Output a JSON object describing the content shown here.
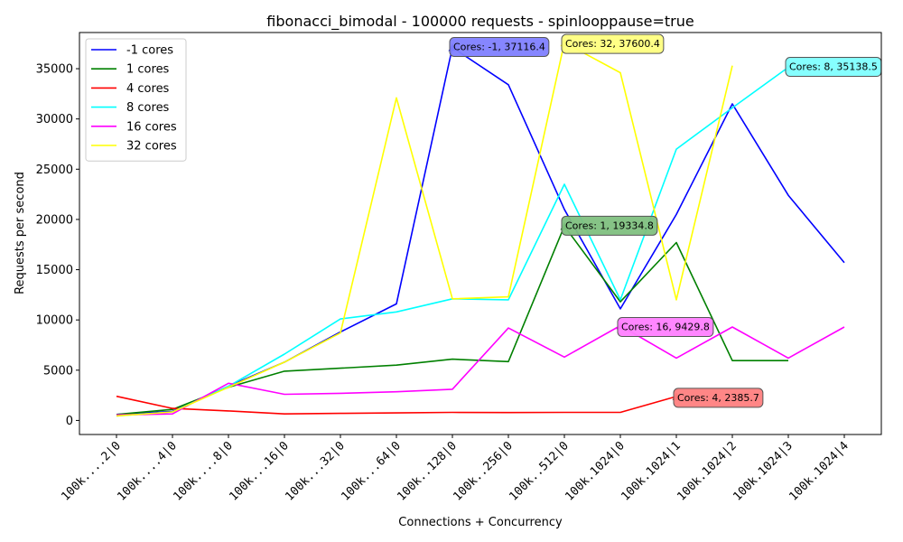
{
  "chart_data": {
    "type": "line",
    "title": "fibonacci_bimodal - 100000 requests - spinlooppause=true",
    "xlabel": "Connections + Concurrency",
    "ylabel": "Requests per second",
    "ylim": [
      -1400,
      38600
    ],
    "yticks": [
      0,
      5000,
      10000,
      15000,
      20000,
      25000,
      30000,
      35000
    ],
    "ytick_labels": [
      "0",
      "5000",
      "10000",
      "15000",
      "20000",
      "25000",
      "30000",
      "35000"
    ],
    "categories": [
      "100k....2|0",
      "100k....4|0",
      "100k....8|0",
      "100k...16|0",
      "100k...32|0",
      "100k...64|0",
      "100k..128|0",
      "100k..256|0",
      "100k..512|0",
      "100k.1024|0",
      "100k.1024|1",
      "100k.1024|2",
      "100k.1024|3",
      "100k.1024|4"
    ],
    "legend_position": "top-left",
    "series": [
      {
        "name": "-1 cores",
        "color": "#0000ff",
        "values": [
          600,
          900,
          3400,
          5800,
          8800,
          11600,
          37116.4,
          33400,
          21000,
          11100,
          20500,
          31500,
          22400,
          15700
        ]
      },
      {
        "name": "1 cores",
        "color": "#008000",
        "values": [
          600,
          1100,
          3300,
          4900,
          5200,
          5500,
          6100,
          5850,
          19334.8,
          11800,
          17700,
          5950,
          5950,
          null
        ]
      },
      {
        "name": "4 cores",
        "color": "#ff0000",
        "values": [
          2400,
          1200,
          950,
          650,
          700,
          750,
          800,
          780,
          800,
          800,
          2385.7,
          null,
          null,
          null
        ]
      },
      {
        "name": "8 cores",
        "color": "#00ffff",
        "values": [
          450,
          850,
          3400,
          6600,
          10100,
          10800,
          12100,
          12000,
          23500,
          12000,
          27000,
          31100,
          35138.5,
          null
        ]
      },
      {
        "name": "16 cores",
        "color": "#ff00ff",
        "values": [
          550,
          650,
          3700,
          2600,
          2700,
          2850,
          3100,
          9200,
          6300,
          9429.8,
          6200,
          9300,
          6200,
          9300
        ]
      },
      {
        "name": "32 cores",
        "color": "#ffff00",
        "values": [
          450,
          850,
          3300,
          5800,
          8700,
          32100,
          12100,
          12300,
          37600.4,
          34600,
          12000,
          35300,
          null,
          null
        ]
      }
    ],
    "annotations": [
      {
        "text": "Cores: -1, 37116.4",
        "series": 0,
        "index": 6,
        "face": "#8080ff",
        "dx": 0,
        "dy": -10
      },
      {
        "text": "Cores: 32, 37600.4",
        "series": 5,
        "index": 8,
        "face": "#ffff80",
        "dx": 0,
        "dy": -8
      },
      {
        "text": "Cores: 8, 35138.5",
        "series": 3,
        "index": 12,
        "face": "#80ffff",
        "dx": 0,
        "dy": -10
      },
      {
        "text": "Cores: 1, 19334.8",
        "series": 1,
        "index": 8,
        "face": "#80c080",
        "dx": 0,
        "dy": -10
      },
      {
        "text": "Cores: 16, 9429.8",
        "series": 4,
        "index": 9,
        "face": "#ff80ff",
        "dx": 0,
        "dy": -8
      },
      {
        "text": "Cores: 4, 2385.7",
        "series": 2,
        "index": 10,
        "face": "#ff8080",
        "dx": 0,
        "dy": -8
      }
    ]
  }
}
